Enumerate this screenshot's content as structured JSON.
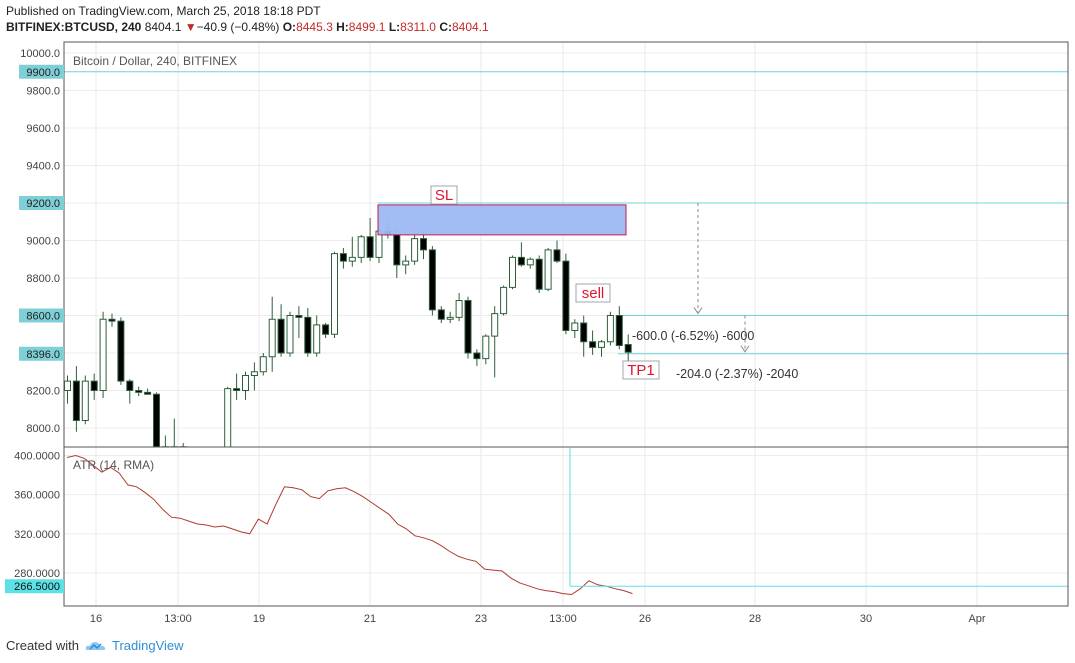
{
  "header": {
    "published": "Published on TradingView.com, March 25, 2018 18:18 PDT",
    "symbol": "BITFINEX:BTCUSD, 240",
    "last": "8404.1",
    "change": "−40.9 (−0.48%)",
    "o_label": "O:",
    "o": "8445.3",
    "h_label": "H:",
    "h": "8499.1",
    "l_label": "L:",
    "l": "8311.0",
    "c_label": "C:",
    "c": "8404.1"
  },
  "footer": {
    "created_with": "Created with",
    "brand": "TradingView"
  },
  "colors": {
    "up_fill": "#ffffff",
    "down_fill": "#000000",
    "candle_stroke": "#2e5f3a",
    "level_line": "#6fd4d8",
    "level_badge": "#7fcfd6",
    "atr_line": "#b03a2e",
    "atr_badge": "#5ce1e6",
    "zone_fill": "#9db9f2",
    "zone_stroke": "#c2185b",
    "red_text": "#e0142c"
  },
  "chart_data": [
    {
      "type": "candlestick",
      "title": "Bitcoin / Dollar, 240, BITFINEX",
      "ylim": [
        7930,
        10020
      ],
      "y_ticks": [
        "10000.0",
        "9800.0",
        "9600.0",
        "9400.0",
        "9000.0",
        "8800.0",
        "8200.0",
        "8000.0"
      ],
      "x_ticks": [
        "16",
        "13:00",
        "19",
        "21",
        "23",
        "13:00",
        "26",
        "28",
        "30",
        "Apr"
      ],
      "level_badges": [
        {
          "value": 9900,
          "label": "9900.0"
        },
        {
          "value": 9200,
          "label": "9200.0"
        },
        {
          "value": 8600,
          "label": "8600.0"
        },
        {
          "value": 8396,
          "label": "8396.0"
        }
      ],
      "candles": [
        {
          "o": 8200,
          "h": 8280,
          "l": 8130,
          "c": 8250
        },
        {
          "o": 8250,
          "h": 8330,
          "l": 7980,
          "c": 8040
        },
        {
          "o": 8040,
          "h": 8280,
          "l": 8020,
          "c": 8250
        },
        {
          "o": 8250,
          "h": 8290,
          "l": 8150,
          "c": 8200
        },
        {
          "o": 8200,
          "h": 8620,
          "l": 8160,
          "c": 8580
        },
        {
          "o": 8580,
          "h": 8610,
          "l": 8540,
          "c": 8570
        },
        {
          "o": 8570,
          "h": 8590,
          "l": 8230,
          "c": 8250
        },
        {
          "o": 8250,
          "h": 8260,
          "l": 8130,
          "c": 8200
        },
        {
          "o": 8200,
          "h": 8220,
          "l": 8170,
          "c": 8190
        },
        {
          "o": 8190,
          "h": 8210,
          "l": 8180,
          "c": 8180
        },
        {
          "o": 8180,
          "h": 8190,
          "l": 7850,
          "c": 7900
        },
        {
          "o": 7900,
          "h": 7960,
          "l": 7850,
          "c": 7880
        },
        {
          "o": 7880,
          "h": 8050,
          "l": 7860,
          "c": 7900
        },
        {
          "o": 7900,
          "h": 7920,
          "l": 7870,
          "c": 7890
        },
        {
          "o": 7890,
          "h": 7900,
          "l": 7870,
          "c": 7880
        },
        {
          "o": 7880,
          "h": 7900,
          "l": 7850,
          "c": 7870
        },
        {
          "o": 7870,
          "h": 7890,
          "l": 7850,
          "c": 7860
        },
        {
          "o": 7860,
          "h": 7900,
          "l": 7840,
          "c": 7880
        },
        {
          "o": 7880,
          "h": 8220,
          "l": 7860,
          "c": 8210
        },
        {
          "o": 8210,
          "h": 8290,
          "l": 8150,
          "c": 8200
        },
        {
          "o": 8200,
          "h": 8300,
          "l": 8150,
          "c": 8280
        },
        {
          "o": 8280,
          "h": 8350,
          "l": 8200,
          "c": 8300
        },
        {
          "o": 8300,
          "h": 8400,
          "l": 8280,
          "c": 8380
        },
        {
          "o": 8380,
          "h": 8700,
          "l": 8300,
          "c": 8580
        },
        {
          "o": 8580,
          "h": 8660,
          "l": 8380,
          "c": 8400
        },
        {
          "o": 8400,
          "h": 8620,
          "l": 8380,
          "c": 8600
        },
        {
          "o": 8600,
          "h": 8650,
          "l": 8480,
          "c": 8590
        },
        {
          "o": 8590,
          "h": 8640,
          "l": 8380,
          "c": 8400
        },
        {
          "o": 8400,
          "h": 8600,
          "l": 8380,
          "c": 8550
        },
        {
          "o": 8550,
          "h": 8560,
          "l": 8480,
          "c": 8500
        },
        {
          "o": 8500,
          "h": 8940,
          "l": 8480,
          "c": 8930
        },
        {
          "o": 8930,
          "h": 8960,
          "l": 8850,
          "c": 8890
        },
        {
          "o": 8890,
          "h": 9020,
          "l": 8860,
          "c": 8910
        },
        {
          "o": 8910,
          "h": 9030,
          "l": 8880,
          "c": 9020
        },
        {
          "o": 9020,
          "h": 9120,
          "l": 8890,
          "c": 8910
        },
        {
          "o": 8910,
          "h": 9060,
          "l": 8880,
          "c": 9050
        },
        {
          "o": 9050,
          "h": 9100,
          "l": 9010,
          "c": 9030
        },
        {
          "o": 9030,
          "h": 9060,
          "l": 8800,
          "c": 8870
        },
        {
          "o": 8870,
          "h": 8920,
          "l": 8820,
          "c": 8890
        },
        {
          "o": 8890,
          "h": 9030,
          "l": 8870,
          "c": 9010
        },
        {
          "o": 9010,
          "h": 9040,
          "l": 8900,
          "c": 8950
        },
        {
          "o": 8950,
          "h": 8970,
          "l": 8600,
          "c": 8630
        },
        {
          "o": 8630,
          "h": 8650,
          "l": 8560,
          "c": 8580
        },
        {
          "o": 8580,
          "h": 8620,
          "l": 8560,
          "c": 8590
        },
        {
          "o": 8590,
          "h": 8720,
          "l": 8570,
          "c": 8680
        },
        {
          "o": 8680,
          "h": 8700,
          "l": 8370,
          "c": 8400
        },
        {
          "o": 8400,
          "h": 8420,
          "l": 8330,
          "c": 8370
        },
        {
          "o": 8370,
          "h": 8500,
          "l": 8340,
          "c": 8490
        },
        {
          "o": 8490,
          "h": 8650,
          "l": 8270,
          "c": 8610
        },
        {
          "o": 8610,
          "h": 8760,
          "l": 8600,
          "c": 8750
        },
        {
          "o": 8750,
          "h": 8920,
          "l": 8740,
          "c": 8910
        },
        {
          "o": 8910,
          "h": 8990,
          "l": 8860,
          "c": 8870
        },
        {
          "o": 8870,
          "h": 8910,
          "l": 8850,
          "c": 8900
        },
        {
          "o": 8900,
          "h": 8920,
          "l": 8720,
          "c": 8740
        },
        {
          "o": 8740,
          "h": 8960,
          "l": 8730,
          "c": 8950
        },
        {
          "o": 8950,
          "h": 9000,
          "l": 8880,
          "c": 8890
        },
        {
          "o": 8890,
          "h": 8930,
          "l": 8500,
          "c": 8520
        },
        {
          "o": 8520,
          "h": 8580,
          "l": 8480,
          "c": 8560
        },
        {
          "o": 8560,
          "h": 8600,
          "l": 8380,
          "c": 8460
        },
        {
          "o": 8460,
          "h": 8520,
          "l": 8390,
          "c": 8430
        },
        {
          "o": 8430,
          "h": 8470,
          "l": 8380,
          "c": 8460
        },
        {
          "o": 8460,
          "h": 8620,
          "l": 8440,
          "c": 8600
        },
        {
          "o": 8600,
          "h": 8650,
          "l": 8420,
          "c": 8440
        },
        {
          "o": 8445.3,
          "h": 8499.1,
          "l": 8311.0,
          "c": 8404.1
        }
      ],
      "annotations": [
        {
          "text": "SL"
        },
        {
          "text": "sell"
        },
        {
          "text": "TP1"
        },
        {
          "text": "-600.0 (-6.52%) -6000"
        },
        {
          "text": "-204.0 (-2.37%) -2040"
        }
      ],
      "zone": {
        "top": 9190,
        "bottom": 9030
      }
    },
    {
      "type": "line",
      "title": "ATR (14, RMA)",
      "ylim": [
        250,
        406
      ],
      "y_ticks": [
        "400.0000",
        "360.0000",
        "320.0000",
        "280.0000"
      ],
      "last_badge": {
        "value": 266.5,
        "label": "266.5000"
      },
      "series": [
        {
          "values": [
            398,
            400,
            397,
            390,
            383,
            388,
            382,
            370,
            368,
            362,
            355,
            345,
            337,
            336,
            333,
            330,
            329,
            327,
            328,
            325,
            322,
            320,
            335,
            330,
            350,
            368,
            367,
            365,
            358,
            356,
            364,
            366,
            367,
            363,
            358,
            352,
            346,
            340,
            330,
            325,
            318,
            316,
            313,
            308,
            302,
            297,
            294,
            292,
            284,
            283,
            282,
            275,
            270,
            267,
            264,
            262,
            261,
            259,
            258,
            264,
            272,
            268,
            266.5,
            264,
            262,
            259
          ]
        }
      ]
    }
  ]
}
